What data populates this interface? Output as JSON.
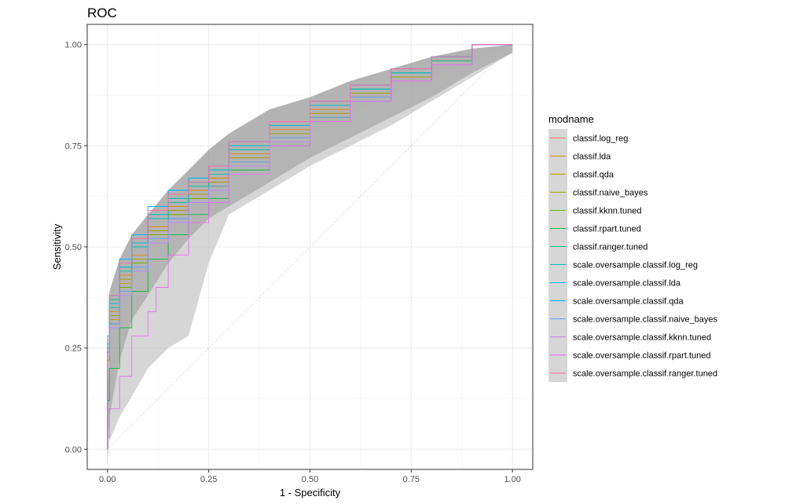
{
  "chart_data": {
    "type": "line",
    "title": "ROC",
    "xlabel": "1 - Specificity",
    "ylabel": "Sensitivity",
    "xlim": [
      -0.05,
      1.05
    ],
    "ylim": [
      -0.05,
      1.05
    ],
    "x_ticks": [
      0.0,
      0.25,
      0.5,
      0.75,
      1.0
    ],
    "y_ticks": [
      0.0,
      0.25,
      0.5,
      0.75,
      1.0
    ],
    "x_tick_labels": [
      "0.00",
      "0.25",
      "0.50",
      "0.75",
      "1.00"
    ],
    "y_tick_labels": [
      "0.00",
      "0.25",
      "0.50",
      "0.75",
      "1.00"
    ],
    "reference_line": "dotted diagonal from (0,0) to (1,1)",
    "legend": {
      "title": "modname",
      "position": "right",
      "entries": [
        {
          "name": "classif.log_reg",
          "color": "#F8766D"
        },
        {
          "name": "classif.lda",
          "color": "#E58700"
        },
        {
          "name": "classif.qda",
          "color": "#C99800"
        },
        {
          "name": "classif.naive_bayes",
          "color": "#A3A500"
        },
        {
          "name": "classif.kknn.tuned",
          "color": "#6BB100"
        },
        {
          "name": "classif.rpart.tuned",
          "color": "#00BA38"
        },
        {
          "name": "classif.ranger.tuned",
          "color": "#00BF7D"
        },
        {
          "name": "scale.oversample.classif.log_reg",
          "color": "#00C0AF"
        },
        {
          "name": "scale.oversample.classif.lda",
          "color": "#00BCD8"
        },
        {
          "name": "scale.oversample.classif.qda",
          "color": "#00B0F6"
        },
        {
          "name": "scale.oversample.classif.naive_bayes",
          "color": "#619CFF"
        },
        {
          "name": "scale.oversample.classif.kknn.tuned",
          "color": "#B983FF"
        },
        {
          "name": "scale.oversample.classif.rpart.tuned",
          "color": "#E76BF3"
        },
        {
          "name": "scale.oversample.classif.ranger.tuned",
          "color": "#FF67A4"
        }
      ]
    },
    "series": [
      {
        "name": "classif.log_reg",
        "x": [
          0,
          0.005,
          0.03,
          0.06,
          0.1,
          0.15,
          0.2,
          0.25,
          0.3,
          0.4,
          0.5,
          0.6,
          0.7,
          0.8,
          0.9,
          1.0
        ],
        "y": [
          0,
          0.24,
          0.33,
          0.42,
          0.47,
          0.54,
          0.59,
          0.63,
          0.66,
          0.72,
          0.78,
          0.83,
          0.87,
          0.92,
          0.96,
          1.0
        ]
      },
      {
        "name": "classif.lda",
        "x": [
          0,
          0.005,
          0.03,
          0.06,
          0.1,
          0.15,
          0.2,
          0.25,
          0.3,
          0.4,
          0.5,
          0.6,
          0.7,
          0.8,
          0.9,
          1.0
        ],
        "y": [
          0,
          0.25,
          0.34,
          0.43,
          0.48,
          0.55,
          0.6,
          0.64,
          0.67,
          0.73,
          0.79,
          0.84,
          0.88,
          0.92,
          0.96,
          1.0
        ]
      },
      {
        "name": "classif.qda",
        "x": [
          0,
          0.005,
          0.03,
          0.06,
          0.1,
          0.15,
          0.2,
          0.25,
          0.3,
          0.4,
          0.5,
          0.6,
          0.7,
          0.8,
          0.9,
          1.0
        ],
        "y": [
          0,
          0.23,
          0.32,
          0.41,
          0.46,
          0.53,
          0.58,
          0.62,
          0.65,
          0.71,
          0.77,
          0.82,
          0.87,
          0.91,
          0.95,
          1.0
        ]
      },
      {
        "name": "classif.naive_bayes",
        "x": [
          0,
          0.005,
          0.03,
          0.06,
          0.1,
          0.15,
          0.2,
          0.25,
          0.3,
          0.4,
          0.5,
          0.6,
          0.7,
          0.8,
          0.9,
          1.0
        ],
        "y": [
          0,
          0.24,
          0.33,
          0.42,
          0.47,
          0.54,
          0.59,
          0.63,
          0.66,
          0.72,
          0.78,
          0.83,
          0.88,
          0.92,
          0.96,
          1.0
        ]
      },
      {
        "name": "classif.kknn.tuned",
        "x": [
          0,
          0.005,
          0.03,
          0.06,
          0.1,
          0.15,
          0.2,
          0.25,
          0.3,
          0.4,
          0.5,
          0.6,
          0.7,
          0.8,
          0.9,
          1.0
        ],
        "y": [
          0,
          0.22,
          0.31,
          0.4,
          0.46,
          0.53,
          0.58,
          0.62,
          0.65,
          0.71,
          0.77,
          0.82,
          0.87,
          0.91,
          0.95,
          1.0
        ]
      },
      {
        "name": "classif.rpart.tuned",
        "x": [
          0,
          0.005,
          0.03,
          0.06,
          0.1,
          0.15,
          0.2,
          0.25,
          0.3,
          0.4,
          0.5,
          0.6,
          0.7,
          0.8,
          0.9,
          1.0
        ],
        "y": [
          0,
          0.12,
          0.2,
          0.3,
          0.39,
          0.47,
          0.53,
          0.58,
          0.62,
          0.69,
          0.75,
          0.81,
          0.86,
          0.91,
          0.95,
          1.0
        ]
      },
      {
        "name": "classif.ranger.tuned",
        "x": [
          0,
          0.005,
          0.03,
          0.06,
          0.1,
          0.15,
          0.2,
          0.25,
          0.3,
          0.4,
          0.5,
          0.6,
          0.7,
          0.8,
          0.9,
          1.0
        ],
        "y": [
          0,
          0.26,
          0.37,
          0.45,
          0.51,
          0.58,
          0.62,
          0.66,
          0.69,
          0.75,
          0.8,
          0.85,
          0.89,
          0.93,
          0.97,
          1.0
        ]
      },
      {
        "name": "scale.oversample.classif.log_reg",
        "x": [
          0,
          0.005,
          0.03,
          0.06,
          0.1,
          0.15,
          0.2,
          0.25,
          0.3,
          0.4,
          0.5,
          0.6,
          0.7,
          0.8,
          0.9,
          1.0
        ],
        "y": [
          0,
          0.25,
          0.35,
          0.44,
          0.5,
          0.57,
          0.61,
          0.65,
          0.68,
          0.74,
          0.8,
          0.85,
          0.89,
          0.93,
          0.96,
          1.0
        ]
      },
      {
        "name": "scale.oversample.classif.lda",
        "x": [
          0,
          0.005,
          0.03,
          0.06,
          0.1,
          0.15,
          0.2,
          0.25,
          0.3,
          0.4,
          0.5,
          0.6,
          0.7,
          0.8,
          0.9,
          1.0
        ],
        "y": [
          0,
          0.26,
          0.36,
          0.45,
          0.51,
          0.58,
          0.62,
          0.66,
          0.69,
          0.75,
          0.8,
          0.85,
          0.89,
          0.93,
          0.97,
          1.0
        ]
      },
      {
        "name": "scale.oversample.classif.qda",
        "x": [
          0,
          0.005,
          0.03,
          0.06,
          0.1,
          0.15,
          0.2,
          0.25,
          0.3,
          0.4,
          0.5,
          0.6,
          0.7,
          0.8,
          0.9,
          1.0
        ],
        "y": [
          0,
          0.28,
          0.38,
          0.47,
          0.53,
          0.6,
          0.64,
          0.67,
          0.7,
          0.76,
          0.81,
          0.86,
          0.9,
          0.94,
          0.97,
          1.0
        ]
      },
      {
        "name": "scale.oversample.classif.naive_bayes",
        "x": [
          0,
          0.005,
          0.03,
          0.06,
          0.1,
          0.15,
          0.2,
          0.25,
          0.3,
          0.4,
          0.5,
          0.6,
          0.7,
          0.8,
          0.9,
          1.0
        ],
        "y": [
          0,
          0.24,
          0.31,
          0.39,
          0.45,
          0.52,
          0.57,
          0.61,
          0.65,
          0.71,
          0.77,
          0.82,
          0.87,
          0.91,
          0.95,
          1.0
        ]
      },
      {
        "name": "scale.oversample.classif.kknn.tuned",
        "x": [
          0,
          0.005,
          0.03,
          0.06,
          0.1,
          0.15,
          0.2,
          0.25,
          0.3,
          0.4,
          0.5,
          0.6,
          0.7,
          0.8,
          0.9,
          1.0
        ],
        "y": [
          0,
          0.23,
          0.3,
          0.38,
          0.44,
          0.51,
          0.56,
          0.61,
          0.64,
          0.7,
          0.76,
          0.81,
          0.86,
          0.91,
          0.95,
          1.0
        ]
      },
      {
        "name": "scale.oversample.classif.rpart.tuned",
        "x": [
          0,
          0.005,
          0.03,
          0.06,
          0.1,
          0.12,
          0.15,
          0.2,
          0.25,
          0.3,
          0.4,
          0.5,
          0.6,
          0.7,
          0.8,
          0.9,
          1.0
        ],
        "y": [
          0,
          0.03,
          0.1,
          0.18,
          0.28,
          0.34,
          0.4,
          0.48,
          0.56,
          0.61,
          0.68,
          0.75,
          0.81,
          0.86,
          0.91,
          0.95,
          1.0
        ]
      },
      {
        "name": "scale.oversample.classif.ranger.tuned",
        "x": [
          0,
          0.005,
          0.03,
          0.06,
          0.1,
          0.15,
          0.2,
          0.25,
          0.3,
          0.4,
          0.5,
          0.6,
          0.7,
          0.8,
          0.9,
          1.0
        ],
        "y": [
          0,
          0.27,
          0.38,
          0.46,
          0.52,
          0.59,
          0.63,
          0.66,
          0.7,
          0.76,
          0.81,
          0.86,
          0.9,
          0.94,
          0.97,
          1.0
        ]
      }
    ],
    "confidence_bands": [
      {
        "x": [
          0,
          0.005,
          0.03,
          0.06,
          0.1,
          0.15,
          0.2,
          0.25,
          0.3,
          0.4,
          0.5,
          0.6,
          0.7,
          0.8,
          0.9,
          1.0
        ],
        "lower": [
          0,
          0.08,
          0.22,
          0.32,
          0.38,
          0.46,
          0.52,
          0.57,
          0.6,
          0.66,
          0.72,
          0.77,
          0.82,
          0.87,
          0.93,
          0.98
        ],
        "upper": [
          0.06,
          0.39,
          0.47,
          0.53,
          0.58,
          0.64,
          0.69,
          0.74,
          0.78,
          0.84,
          0.87,
          0.91,
          0.94,
          0.97,
          0.99,
          1.0
        ]
      },
      {
        "x": [
          0,
          0.005,
          0.03,
          0.06,
          0.1,
          0.15,
          0.2,
          0.25,
          0.3,
          0.4,
          0.5,
          0.6,
          0.7,
          0.8,
          0.9,
          1.0
        ],
        "lower": [
          -0.04,
          0.02,
          0.08,
          0.13,
          0.2,
          0.25,
          0.28,
          0.46,
          0.58,
          0.64,
          0.7,
          0.75,
          0.8,
          0.86,
          0.92,
          0.98
        ],
        "upper": [
          0.04,
          0.16,
          0.28,
          0.4,
          0.52,
          0.58,
          0.56,
          0.6,
          0.66,
          0.72,
          0.78,
          0.83,
          0.88,
          0.92,
          0.96,
          1.0
        ]
      }
    ]
  }
}
